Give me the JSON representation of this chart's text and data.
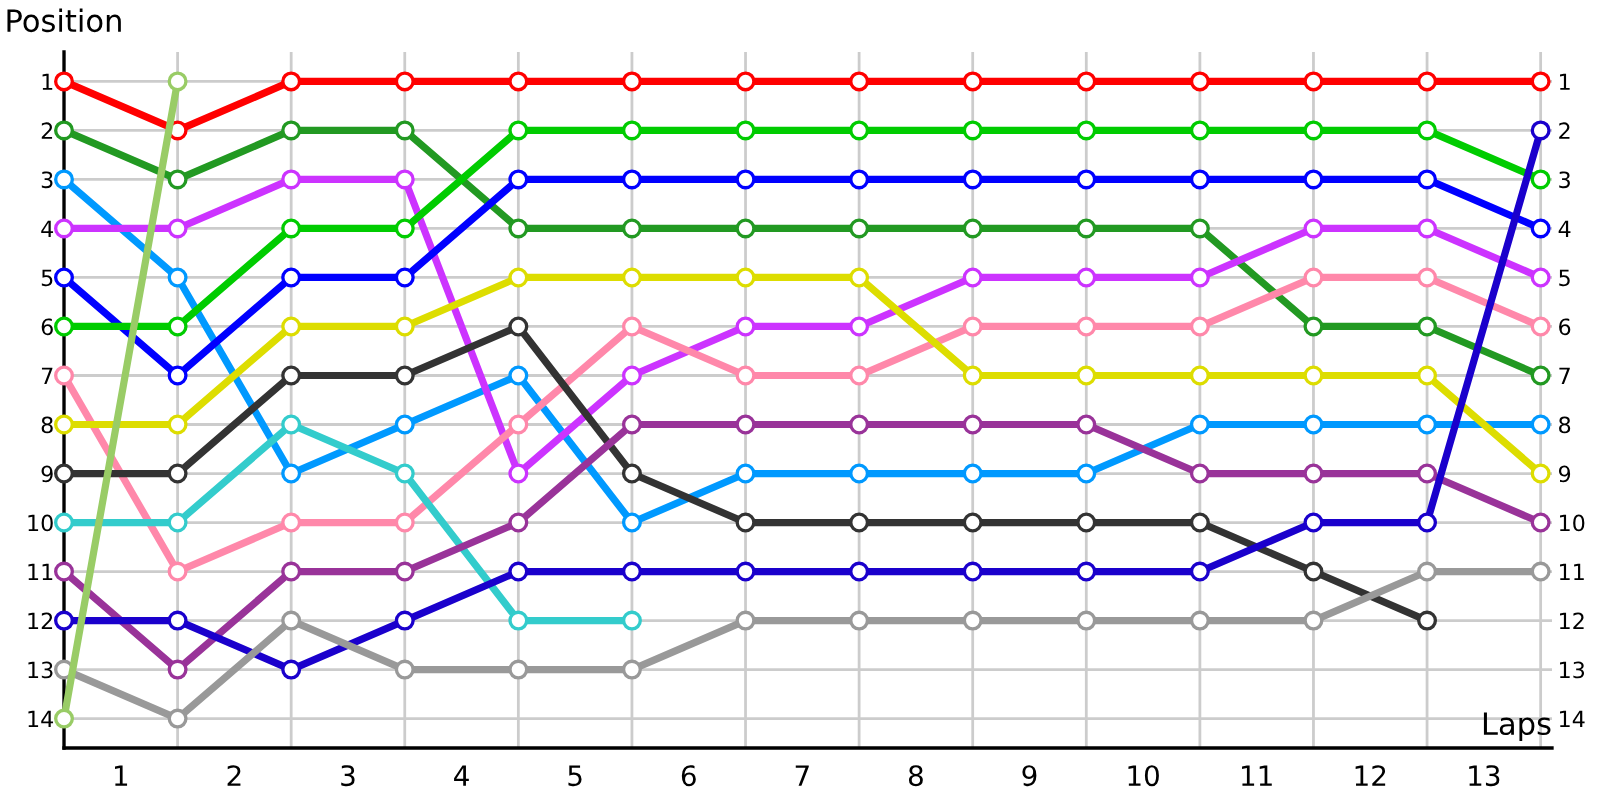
{
  "chart_data": {
    "type": "line",
    "xlabel": "Laps",
    "ylabel": "Position",
    "x": [
      0,
      1,
      2,
      3,
      4,
      5,
      6,
      7,
      8,
      9,
      10,
      11,
      12,
      13
    ],
    "xlim": [
      0,
      13.1
    ],
    "ylim": [
      14.6,
      0.4
    ],
    "xticks": [
      {
        "value": 0,
        "label": null
      },
      {
        "value": 0.5,
        "label": "1"
      },
      {
        "value": 1,
        "label": null
      },
      {
        "value": 1.5,
        "label": "2"
      },
      {
        "value": 2,
        "label": null
      },
      {
        "value": 2.5,
        "label": "3"
      },
      {
        "value": 3,
        "label": null
      },
      {
        "value": 3.5,
        "label": "4"
      },
      {
        "value": 4,
        "label": null
      },
      {
        "value": 4.5,
        "label": "5"
      },
      {
        "value": 5,
        "label": null
      },
      {
        "value": 5.5,
        "label": "6"
      },
      {
        "value": 6,
        "label": null
      },
      {
        "value": 6.5,
        "label": "7"
      },
      {
        "value": 7,
        "label": null
      },
      {
        "value": 7.5,
        "label": "8"
      },
      {
        "value": 8,
        "label": null
      },
      {
        "value": 8.5,
        "label": "9"
      },
      {
        "value": 9,
        "label": null
      },
      {
        "value": 9.5,
        "label": "10"
      },
      {
        "value": 10,
        "label": null
      },
      {
        "value": 10.5,
        "label": "11"
      },
      {
        "value": 11,
        "label": null
      },
      {
        "value": 11.5,
        "label": "12"
      },
      {
        "value": 12,
        "label": null
      },
      {
        "value": 12.5,
        "label": "13"
      },
      {
        "value": 13,
        "label": null
      }
    ],
    "yticks": [
      1,
      2,
      3,
      4,
      5,
      6,
      7,
      8,
      9,
      10,
      11,
      12,
      13,
      14
    ],
    "y2lim": [
      14.6,
      0.4
    ],
    "y2ticks": [
      1,
      2,
      3,
      4,
      5,
      6,
      7,
      8,
      9,
      10,
      11,
      12,
      13,
      14
    ],
    "grid": true,
    "marker": "circle",
    "line_style": "solid",
    "series": [
      {
        "color": "#ff0000",
        "values": [
          1,
          2,
          1,
          1,
          1,
          1,
          1,
          1,
          1,
          1,
          1,
          1,
          1,
          1
        ]
      },
      {
        "color": "#229922",
        "values": [
          2,
          3,
          2,
          2,
          4,
          4,
          4,
          4,
          4,
          4,
          4,
          6,
          6,
          7
        ]
      },
      {
        "color": "#0099ff",
        "values": [
          3,
          5,
          9,
          8,
          7,
          10,
          9,
          9,
          9,
          9,
          8,
          8,
          8,
          8
        ]
      },
      {
        "color": "#cc33ff",
        "values": [
          4,
          4,
          3,
          3,
          9,
          7,
          6,
          6,
          5,
          5,
          5,
          4,
          4,
          5
        ]
      },
      {
        "color": "#0000ff",
        "values": [
          5,
          7,
          5,
          5,
          3,
          3,
          3,
          3,
          3,
          3,
          3,
          3,
          3,
          4
        ]
      },
      {
        "color": "#00cc00",
        "values": [
          6,
          6,
          4,
          4,
          2,
          2,
          2,
          2,
          2,
          2,
          2,
          2,
          2,
          3
        ]
      },
      {
        "color": "#ff88aa",
        "values": [
          7,
          11,
          10,
          10,
          8,
          6,
          7,
          7,
          6,
          6,
          6,
          5,
          5,
          6
        ]
      },
      {
        "color": "#dddd00",
        "values": [
          8,
          8,
          6,
          6,
          5,
          5,
          5,
          5,
          7,
          7,
          7,
          7,
          7,
          9
        ]
      },
      {
        "color": "#333333",
        "values": [
          9,
          9,
          7,
          7,
          6,
          9,
          10,
          10,
          10,
          10,
          10,
          11,
          12,
          null
        ]
      },
      {
        "color": "#33cccc",
        "values": [
          10,
          10,
          8,
          9,
          12,
          12,
          null,
          null,
          null,
          null,
          null,
          null,
          null,
          null
        ]
      },
      {
        "color": "#993399",
        "values": [
          11,
          13,
          11,
          11,
          10,
          8,
          8,
          8,
          8,
          8,
          9,
          9,
          9,
          10
        ]
      },
      {
        "color": "#1a00cc",
        "values": [
          12,
          12,
          13,
          12,
          11,
          11,
          11,
          11,
          11,
          11,
          11,
          10,
          10,
          2
        ]
      },
      {
        "color": "#999999",
        "values": [
          13,
          14,
          12,
          13,
          13,
          13,
          12,
          12,
          12,
          12,
          12,
          12,
          11,
          11
        ]
      },
      {
        "color": "#99cc66",
        "values": [
          14,
          1,
          null,
          null,
          null,
          null,
          null,
          null,
          null,
          null,
          null,
          null,
          null,
          null
        ]
      }
    ]
  }
}
